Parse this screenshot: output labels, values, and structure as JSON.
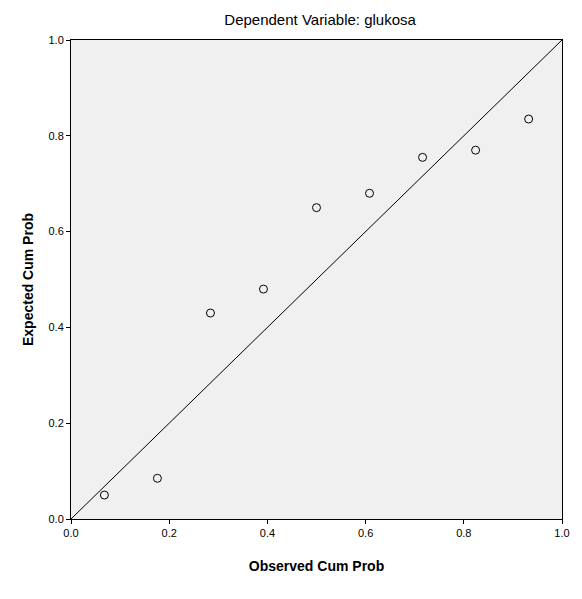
{
  "chart_data": {
    "type": "scatter",
    "title": "Dependent Variable: glukosa",
    "x_label": "Observed Cum Prob",
    "y_label": "Expected Cum Prob",
    "x": [
      0.068,
      0.176,
      0.284,
      0.392,
      0.5,
      0.608,
      0.716,
      0.824,
      0.932
    ],
    "values": [
      0.05,
      0.085,
      0.43,
      0.48,
      0.65,
      0.68,
      0.755,
      0.77,
      0.835
    ],
    "marker": "open_circle",
    "color": "#000000",
    "reference_line": {
      "x": [
        0,
        1
      ],
      "y": [
        0,
        1
      ]
    },
    "xlim": [
      0,
      1
    ],
    "ylim": [
      0,
      1
    ],
    "xticks": [
      {
        "value": 0,
        "label": "0.0"
      },
      {
        "value": 0.2,
        "label": "0.2"
      },
      {
        "value": 0.4,
        "label": "0.4"
      },
      {
        "value": 0.6,
        "label": "0.6"
      },
      {
        "value": 0.8,
        "label": "0.8"
      },
      {
        "value": 1,
        "label": "1.0"
      }
    ],
    "yticks": [
      {
        "value": 0,
        "label": "0.0"
      },
      {
        "value": 0.2,
        "label": "0.2"
      },
      {
        "value": 0.4,
        "label": "0.4"
      },
      {
        "value": 0.6,
        "label": "0.6"
      },
      {
        "value": 0.8,
        "label": "0.8"
      },
      {
        "value": 1,
        "label": "1.0"
      }
    ],
    "grid": false
  }
}
